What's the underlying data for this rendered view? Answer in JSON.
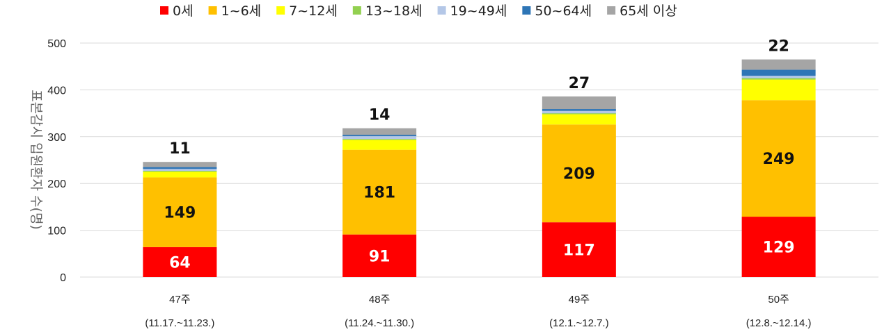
{
  "chart_data": {
    "type": "bar",
    "stacked": true,
    "categories": [
      "47주",
      "48주",
      "49주",
      "50주"
    ],
    "category_sublabels": [
      "(11.17.~11.23.)",
      "(11.24.~11.30.)",
      "(12.1.~12.7.)",
      "(12.8.~12.14.)"
    ],
    "ylabel": "표본감시 입원환자 수(명)",
    "ylim": [
      0,
      500
    ],
    "yticks": [
      0,
      100,
      200,
      300,
      400,
      500
    ],
    "grid": true,
    "legend_position": "top",
    "series": [
      {
        "name": "0세",
        "color": "#ff0000",
        "values": [
          64,
          91,
          117,
          129
        ],
        "labels": [
          "64",
          "91",
          "117",
          "129"
        ],
        "label_color": "#ffffff"
      },
      {
        "name": "1~6세",
        "color": "#ffc000",
        "values": [
          149,
          181,
          209,
          249
        ],
        "labels": [
          "149",
          "181",
          "209",
          "249"
        ],
        "label_color": "#111111"
      },
      {
        "name": "7~12세",
        "color": "#ffff00",
        "values": [
          12,
          21,
          22,
          44
        ]
      },
      {
        "name": "13~18세",
        "color": "#92d050",
        "values": [
          2,
          2,
          2,
          3
        ]
      },
      {
        "name": "19~49세",
        "color": "#b4c7e7",
        "values": [
          4,
          6,
          5,
          5
        ]
      },
      {
        "name": "50~64세",
        "color": "#2e75b6",
        "values": [
          4,
          3,
          4,
          13
        ]
      },
      {
        "name": "65세 이상",
        "color": "#a5a5a5",
        "values": [
          11,
          14,
          27,
          22
        ],
        "labels": [
          "11",
          "14",
          "27",
          "22"
        ],
        "label_position": "above"
      }
    ]
  }
}
